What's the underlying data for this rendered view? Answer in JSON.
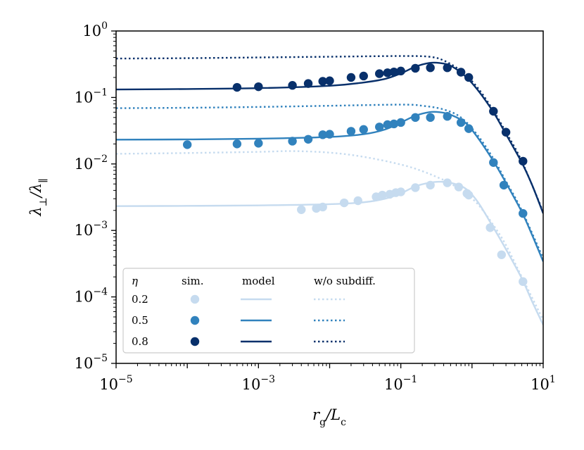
{
  "chart_data": {
    "type": "scatter",
    "x_scale": "log",
    "y_scale": "log",
    "xlim": [
      1e-05,
      10
    ],
    "ylim": [
      1e-05,
      1
    ],
    "xlabel": "r_g / L_c",
    "ylabel": "λ⊥ / λ∥",
    "x_ticks": [
      {
        "base": "10",
        "exp": "−5",
        "value": 1e-05
      },
      {
        "base": "10",
        "exp": "−3",
        "value": 0.001
      },
      {
        "base": "10",
        "exp": "−1",
        "value": 0.1
      },
      {
        "base": "10",
        "exp": "1",
        "value": 10
      }
    ],
    "y_ticks": [
      {
        "base": "10",
        "exp": "0",
        "value": 1
      },
      {
        "base": "10",
        "exp": "−1",
        "value": 0.1
      },
      {
        "base": "10",
        "exp": "−2",
        "value": 0.01
      },
      {
        "base": "10",
        "exp": "−3",
        "value": 0.001
      },
      {
        "base": "10",
        "exp": "−4",
        "value": 0.0001
      },
      {
        "base": "10",
        "exp": "−5",
        "value": 1e-05
      }
    ],
    "legend": {
      "position": "lower-left",
      "header": {
        "eta": "η",
        "sim": "sim.",
        "model": "model",
        "wo": "w/o subdiff."
      },
      "rows": [
        "0.2",
        "0.5",
        "0.8"
      ]
    },
    "series": [
      {
        "eta": "0.2",
        "color": "#c6dbef",
        "sim": [
          [
            0.004,
            0.00205
          ],
          [
            0.0065,
            0.00215
          ],
          [
            0.008,
            0.00225
          ],
          [
            0.016,
            0.0026
          ],
          [
            0.025,
            0.0028
          ],
          [
            0.045,
            0.0032
          ],
          [
            0.055,
            0.0034
          ],
          [
            0.07,
            0.0035
          ],
          [
            0.085,
            0.0037
          ],
          [
            0.1,
            0.0038
          ],
          [
            0.16,
            0.0044
          ],
          [
            0.26,
            0.0048
          ],
          [
            0.45,
            0.0052
          ],
          [
            0.65,
            0.0045
          ],
          [
            0.85,
            0.0036
          ],
          [
            0.9,
            0.0034
          ],
          [
            1.8,
            0.0011
          ],
          [
            2.6,
            0.00043
          ],
          [
            5.2,
            0.00017
          ]
        ],
        "model": [
          [
            1e-05,
            0.00232
          ],
          [
            0.0001,
            0.00234
          ],
          [
            0.001,
            0.00238
          ],
          [
            0.01,
            0.00248
          ],
          [
            0.03,
            0.00265
          ],
          [
            0.06,
            0.003
          ],
          [
            0.1,
            0.0036
          ],
          [
            0.16,
            0.0046
          ],
          [
            0.25,
            0.0052
          ],
          [
            0.35,
            0.0054
          ],
          [
            0.5,
            0.0052
          ],
          [
            0.8,
            0.0043
          ],
          [
            1.2,
            0.0027
          ],
          [
            2,
            0.0011
          ],
          [
            3,
            0.00052
          ],
          [
            5,
            0.00019
          ],
          [
            7,
            8.5e-05
          ],
          [
            10,
            3.8e-05
          ]
        ],
        "wo": [
          [
            1e-05,
            0.0142
          ],
          [
            0.0001,
            0.0146
          ],
          [
            0.001,
            0.0152
          ],
          [
            0.003,
            0.0156
          ],
          [
            0.01,
            0.0148
          ],
          [
            0.03,
            0.0128
          ],
          [
            0.1,
            0.0098
          ],
          [
            0.2,
            0.0078
          ],
          [
            0.35,
            0.0061
          ],
          [
            0.5,
            0.0051
          ],
          [
            0.8,
            0.0036
          ],
          [
            1.2,
            0.0025
          ],
          [
            2,
            0.0012
          ],
          [
            3,
            0.0006
          ],
          [
            5,
            0.0002
          ],
          [
            10,
            4.5e-05
          ]
        ]
      },
      {
        "eta": "0.5",
        "color": "#3182bd",
        "sim": [
          [
            0.0001,
            0.0195
          ],
          [
            0.0005,
            0.02
          ],
          [
            0.001,
            0.0205
          ],
          [
            0.003,
            0.022
          ],
          [
            0.005,
            0.0235
          ],
          [
            0.008,
            0.0275
          ],
          [
            0.01,
            0.028
          ],
          [
            0.02,
            0.031
          ],
          [
            0.03,
            0.033
          ],
          [
            0.05,
            0.036
          ],
          [
            0.065,
            0.039
          ],
          [
            0.08,
            0.04
          ],
          [
            0.1,
            0.042
          ],
          [
            0.16,
            0.05
          ],
          [
            0.26,
            0.05
          ],
          [
            0.45,
            0.052
          ],
          [
            0.7,
            0.042
          ],
          [
            0.9,
            0.034
          ],
          [
            2,
            0.0105
          ],
          [
            2.8,
            0.0048
          ],
          [
            5.2,
            0.0018
          ]
        ],
        "model": [
          [
            1e-05,
            0.0232
          ],
          [
            0.0001,
            0.0234
          ],
          [
            0.001,
            0.024
          ],
          [
            0.01,
            0.0255
          ],
          [
            0.03,
            0.028
          ],
          [
            0.06,
            0.033
          ],
          [
            0.1,
            0.042
          ],
          [
            0.16,
            0.053
          ],
          [
            0.25,
            0.06
          ],
          [
            0.35,
            0.06
          ],
          [
            0.5,
            0.055
          ],
          [
            0.8,
            0.042
          ],
          [
            1.2,
            0.025
          ],
          [
            2,
            0.011
          ],
          [
            3,
            0.0052
          ],
          [
            5,
            0.0019
          ],
          [
            7,
            0.00085
          ],
          [
            10,
            0.00034
          ]
        ],
        "wo": [
          [
            1e-05,
            0.069
          ],
          [
            0.0001,
            0.07
          ],
          [
            0.001,
            0.072
          ],
          [
            0.01,
            0.075
          ],
          [
            0.1,
            0.078
          ],
          [
            0.2,
            0.075
          ],
          [
            0.4,
            0.066
          ],
          [
            0.7,
            0.05
          ],
          [
            1.2,
            0.027
          ],
          [
            2,
            0.012
          ],
          [
            3,
            0.0055
          ],
          [
            5,
            0.002
          ],
          [
            10,
            0.00038
          ]
        ]
      },
      {
        "eta": "0.8",
        "color": "#08306b",
        "sim": [
          [
            0.0005,
            0.142
          ],
          [
            0.001,
            0.145
          ],
          [
            0.003,
            0.152
          ],
          [
            0.005,
            0.162
          ],
          [
            0.008,
            0.175
          ],
          [
            0.01,
            0.178
          ],
          [
            0.02,
            0.2
          ],
          [
            0.03,
            0.21
          ],
          [
            0.05,
            0.228
          ],
          [
            0.065,
            0.235
          ],
          [
            0.08,
            0.242
          ],
          [
            0.1,
            0.25
          ],
          [
            0.16,
            0.275
          ],
          [
            0.26,
            0.28
          ],
          [
            0.45,
            0.28
          ],
          [
            0.7,
            0.24
          ],
          [
            0.9,
            0.2
          ],
          [
            2,
            0.062
          ],
          [
            3,
            0.03
          ],
          [
            5.2,
            0.011
          ]
        ],
        "model": [
          [
            1e-05,
            0.132
          ],
          [
            0.0001,
            0.134
          ],
          [
            0.001,
            0.138
          ],
          [
            0.01,
            0.15
          ],
          [
            0.03,
            0.168
          ],
          [
            0.06,
            0.19
          ],
          [
            0.1,
            0.23
          ],
          [
            0.16,
            0.29
          ],
          [
            0.25,
            0.33
          ],
          [
            0.35,
            0.33
          ],
          [
            0.5,
            0.3
          ],
          [
            0.8,
            0.21
          ],
          [
            1.2,
            0.13
          ],
          [
            2,
            0.06
          ],
          [
            3,
            0.028
          ],
          [
            5,
            0.0105
          ],
          [
            7,
            0.0048
          ],
          [
            10,
            0.0018
          ]
        ],
        "wo": [
          [
            1e-05,
            0.385
          ],
          [
            0.0001,
            0.39
          ],
          [
            0.001,
            0.4
          ],
          [
            0.01,
            0.41
          ],
          [
            0.1,
            0.42
          ],
          [
            0.25,
            0.41
          ],
          [
            0.4,
            0.36
          ],
          [
            0.7,
            0.25
          ],
          [
            1.2,
            0.14
          ],
          [
            2,
            0.063
          ],
          [
            3,
            0.03
          ],
          [
            5,
            0.011
          ],
          [
            10,
            0.0019
          ]
        ]
      }
    ]
  }
}
